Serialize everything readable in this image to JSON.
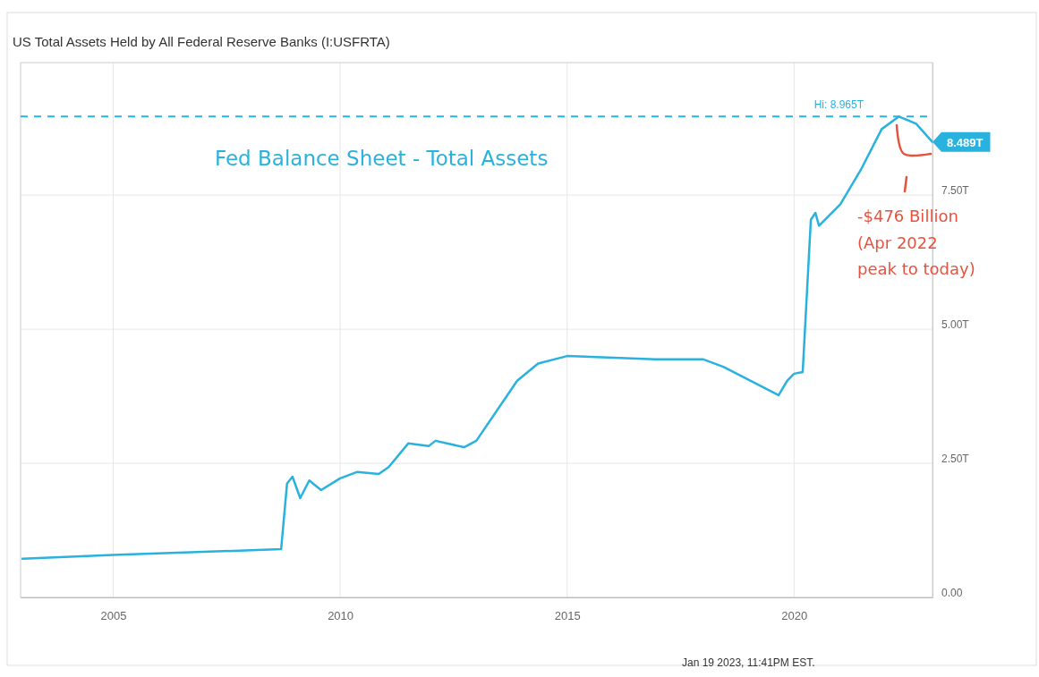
{
  "chart_data": {
    "type": "line",
    "title": "US Total Assets Held by All Federal Reserve Banks (I:USFRTA)",
    "series": [
      {
        "color": "#29b2de",
        "x": [
          2003.0,
          2005.0,
          2008.7,
          2008.83,
          2008.95,
          2009.12,
          2009.32,
          2009.58,
          2010.0,
          2010.38,
          2010.85,
          2011.07,
          2011.5,
          2011.95,
          2012.1,
          2012.73,
          2013.0,
          2013.9,
          2014.36,
          2015.0,
          2016.94,
          2017.99,
          2018.44,
          2019.66,
          2019.85,
          2020.0,
          2020.19,
          2020.37,
          2020.47,
          2020.55,
          2021.02,
          2021.47,
          2021.93,
          2022.31,
          2022.69,
          2023.05
        ],
        "values": [
          0.72,
          0.79,
          0.9,
          2.12,
          2.25,
          1.85,
          2.18,
          2.0,
          2.22,
          2.34,
          2.3,
          2.43,
          2.87,
          2.82,
          2.92,
          2.8,
          2.92,
          4.04,
          4.36,
          4.5,
          4.44,
          4.44,
          4.3,
          3.77,
          4.04,
          4.17,
          4.2,
          7.04,
          7.17,
          6.93,
          7.33,
          7.97,
          8.73,
          8.965,
          8.83,
          8.489
        ]
      }
    ],
    "xlim": [
      2002.96,
      2023.05
    ],
    "xticks": [
      2005,
      2010,
      2015,
      2020
    ],
    "ylim": [
      0,
      9.97
    ],
    "yticks": [
      {
        "value": 0,
        "label": "0.00"
      },
      {
        "value": 2.5,
        "label": "2.50T"
      },
      {
        "value": 5,
        "label": "5.00T"
      },
      {
        "value": 7.5,
        "label": "7.50T"
      }
    ],
    "grid": true,
    "marker": "none",
    "line_style": "solid",
    "ref_lines": [
      {
        "axis": "y",
        "value": 8.965,
        "color": "#29b2de",
        "line_style": "dashed"
      }
    ],
    "annotations": [
      "Fed Balance Sheet - Total Assets",
      "-$476 Billion\n(Apr 2022\npeak to today)",
      "Jan 19 2023, 11:41PM EST.",
      {
        "text": "8.489T",
        "x": 2023.05,
        "y": 8.489
      },
      "Hi: 8.965T"
    ]
  }
}
